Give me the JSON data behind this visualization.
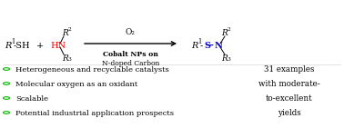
{
  "bg_color": "#ffffff",
  "figsize": [
    3.78,
    1.41
  ],
  "dpi": 100,
  "bullet_color": "#00bb00",
  "bullet_items": [
    "Heterogeneous and recyclable catalysts",
    "Molecular oxygen as an oxidant",
    "Scalable",
    "Potential industrial application prospects"
  ],
  "right_text_lines": [
    "31 examples",
    "with moderate-",
    "to-excellent",
    "yields"
  ],
  "arrow_label_top": "O₂",
  "arrow_label_bold": "Cobalt NPs on",
  "arrow_label_bottom": "N-doped Carbon"
}
